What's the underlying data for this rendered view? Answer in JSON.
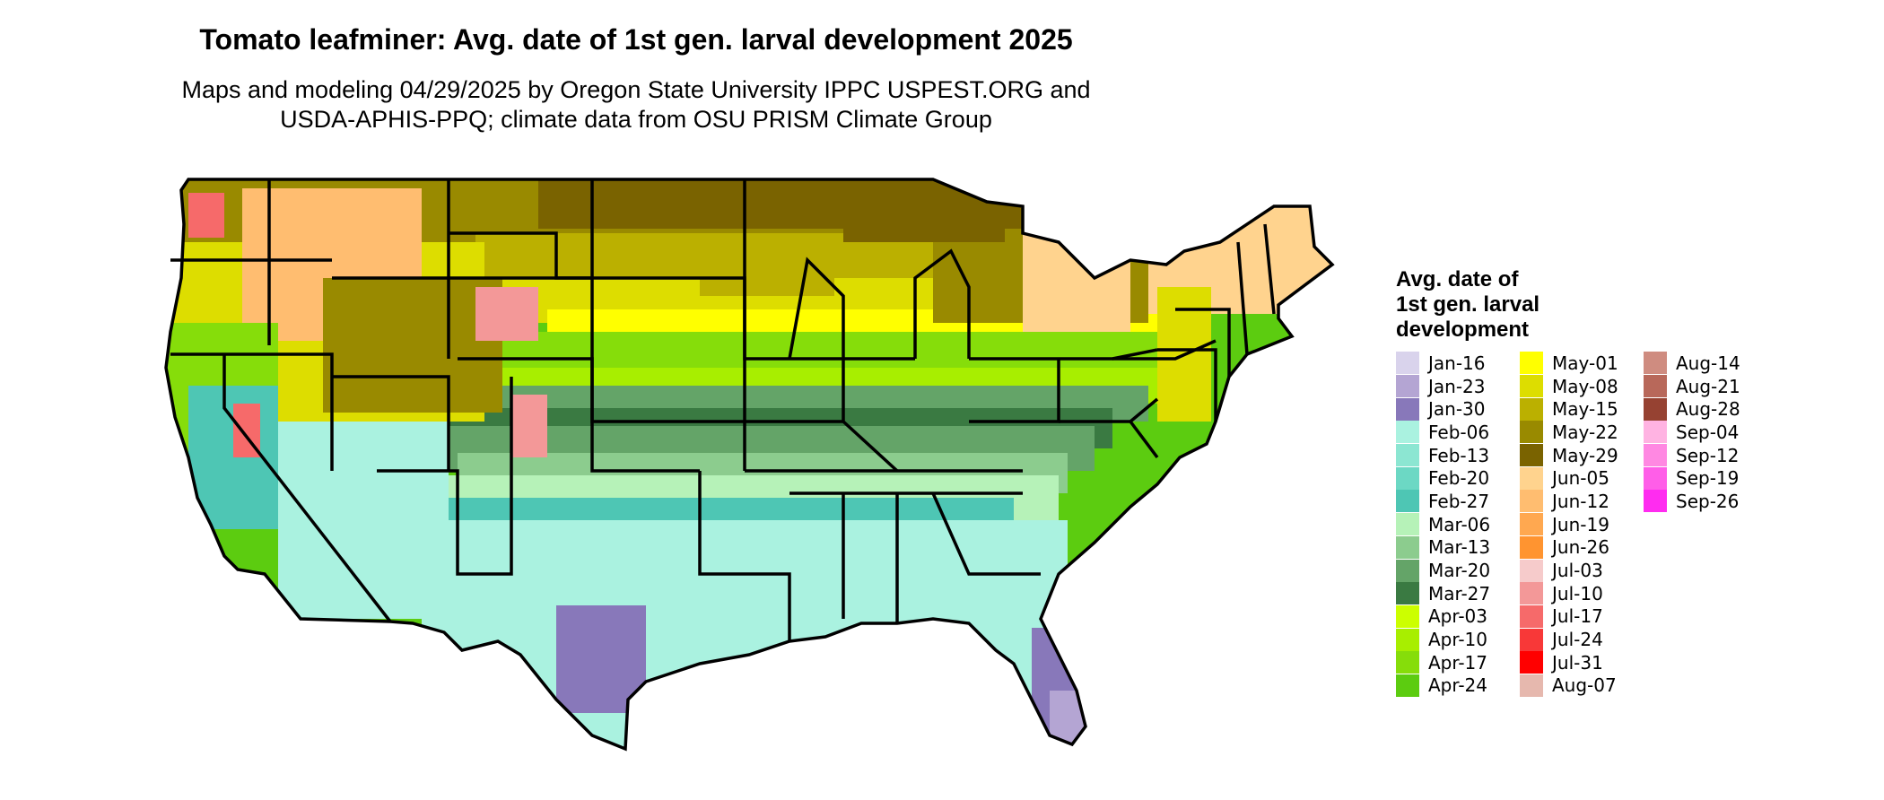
{
  "title": "Tomato leafminer: Avg. date of 1st gen. larval development 2025",
  "subtitle_lines": [
    "Maps and modeling 04/29/2025 by Oregon State University IPPC USPEST.ORG and",
    "USDA-APHIS-PPQ; climate data from OSU PRISM Climate Group"
  ],
  "legend": {
    "title_lines": [
      "Avg. date of",
      "1st gen. larval",
      "development"
    ],
    "columns": [
      [
        {
          "label": "Jan-16",
          "color": "#d9d3ec"
        },
        {
          "label": "Jan-23",
          "color": "#b4a5d3"
        },
        {
          "label": "Jan-30",
          "color": "#8878ba"
        },
        {
          "label": "Feb-06",
          "color": "#aaf2e0"
        },
        {
          "label": "Feb-13",
          "color": "#8ce6d2"
        },
        {
          "label": "Feb-20",
          "color": "#6cd8c4"
        },
        {
          "label": "Feb-27",
          "color": "#4ec6b4"
        },
        {
          "label": "Mar-06",
          "color": "#b6f2b8"
        },
        {
          "label": "Mar-13",
          "color": "#8ccc8e"
        },
        {
          "label": "Mar-20",
          "color": "#64a468"
        },
        {
          "label": "Mar-27",
          "color": "#3a7a42"
        },
        {
          "label": "Apr-03",
          "color": "#ccff00"
        },
        {
          "label": "Apr-10",
          "color": "#a8ee00"
        },
        {
          "label": "Apr-17",
          "color": "#86dd0a"
        },
        {
          "label": "Apr-24",
          "color": "#5ccc10"
        }
      ],
      [
        {
          "label": "May-01",
          "color": "#ffff00"
        },
        {
          "label": "May-08",
          "color": "#dddd00"
        },
        {
          "label": "May-15",
          "color": "#bbb000"
        },
        {
          "label": "May-22",
          "color": "#998a00"
        },
        {
          "label": "May-29",
          "color": "#7a6300"
        },
        {
          "label": "Jun-05",
          "color": "#ffd38e"
        },
        {
          "label": "Jun-12",
          "color": "#ffbd70"
        },
        {
          "label": "Jun-19",
          "color": "#ffa850"
        },
        {
          "label": "Jun-26",
          "color": "#ff9430"
        },
        {
          "label": "Jul-03",
          "color": "#f6cbcb"
        },
        {
          "label": "Jul-10",
          "color": "#f39898"
        },
        {
          "label": "Jul-17",
          "color": "#f66a6a"
        },
        {
          "label": "Jul-24",
          "color": "#f83838"
        },
        {
          "label": "Jul-31",
          "color": "#ff0000"
        },
        {
          "label": "Aug-07",
          "color": "#e6b8ae"
        }
      ],
      [
        {
          "label": "Aug-14",
          "color": "#cf8c80"
        },
        {
          "label": "Aug-21",
          "color": "#b8685a"
        },
        {
          "label": "Aug-28",
          "color": "#964232"
        },
        {
          "label": "Sep-04",
          "color": "#ffb3e2"
        },
        {
          "label": "Sep-12",
          "color": "#ff88e2"
        },
        {
          "label": "Sep-19",
          "color": "#ff5ee8"
        },
        {
          "label": "Sep-26",
          "color": "#ff2cf0"
        }
      ]
    ]
  }
}
